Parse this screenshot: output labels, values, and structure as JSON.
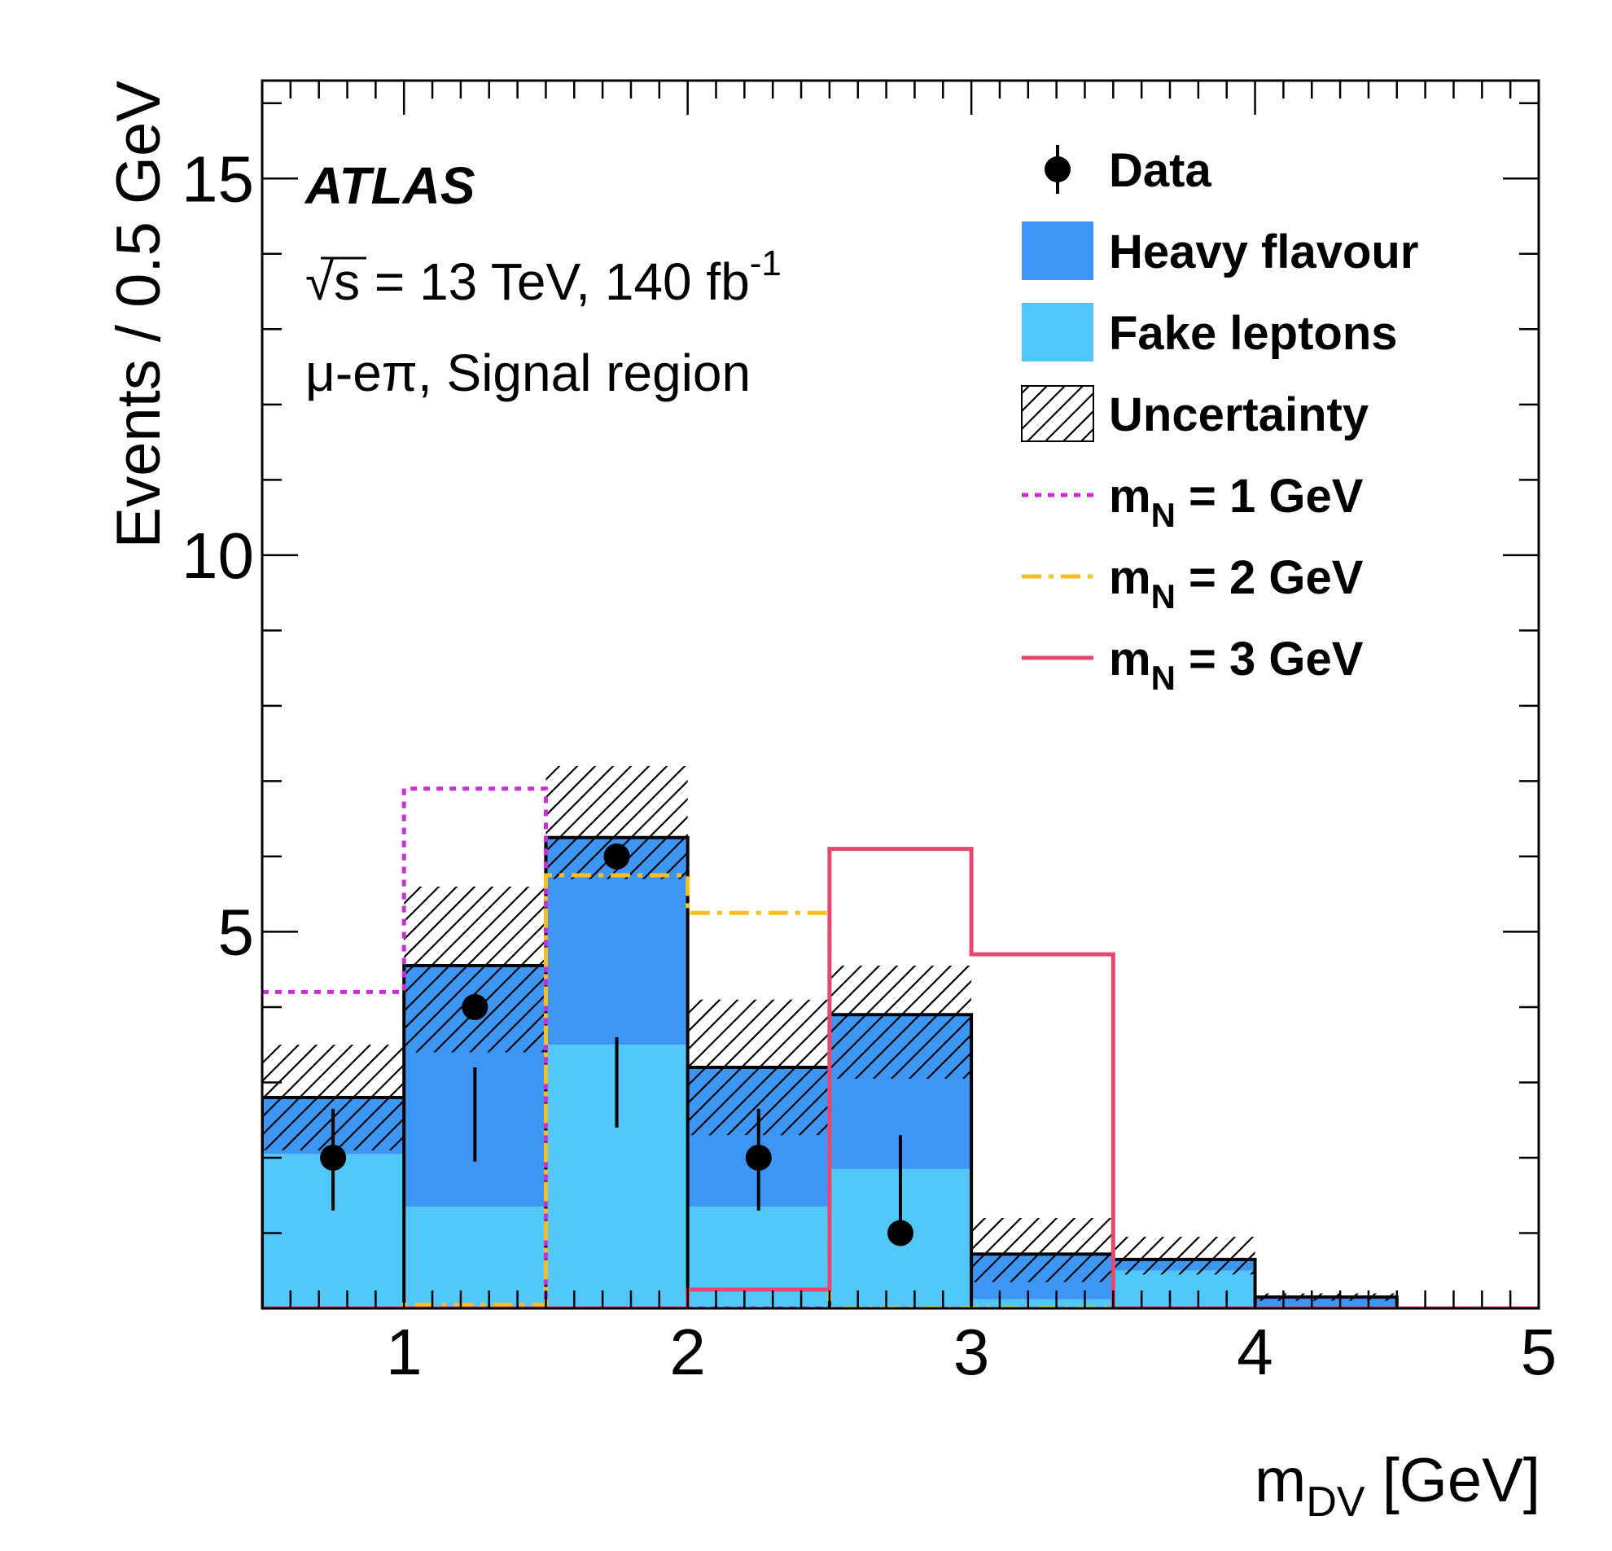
{
  "chart_data": {
    "type": "bar",
    "bins": [
      [
        0.5,
        1.0
      ],
      [
        1.0,
        1.5
      ],
      [
        1.5,
        2.0
      ],
      [
        2.0,
        2.5
      ],
      [
        2.5,
        3.0
      ],
      [
        3.0,
        3.5
      ],
      [
        3.5,
        4.0
      ],
      [
        4.0,
        4.5
      ],
      [
        4.5,
        5.0
      ]
    ],
    "xlabel": "m",
    "xlabel_sub": "DV",
    "xlabel_unit": " [GeV]",
    "ylabel": "Events / 0.5 GeV",
    "xlim": [
      0.5,
      5
    ],
    "ylim": [
      0,
      16.3
    ],
    "x_ticks": [
      1,
      2,
      3,
      4,
      5
    ],
    "y_ticks": [
      5,
      10,
      15
    ],
    "atlas_label": "ATLAS",
    "energy_label": "√s = 13 TeV, 140 fb",
    "energy_sup": "-1",
    "region_label": "μ-eπ, Signal region",
    "stack": [
      {
        "name": "Fake leptons",
        "color": "#52c8fa",
        "values": [
          2.05,
          1.35,
          3.5,
          1.35,
          1.85,
          0.12,
          0.5,
          0.0,
          0.0
        ]
      },
      {
        "name": "Heavy flavour",
        "color": "#3d96f4",
        "values": [
          0.75,
          3.2,
          2.75,
          1.85,
          2.05,
          0.6,
          0.15,
          0.15,
          0.0
        ]
      }
    ],
    "uncertainty": {
      "name": "Uncertainty",
      "down": [
        2.1,
        3.4,
        5.7,
        2.3,
        3.05,
        0.35,
        0.45,
        0.1,
        0.0
      ],
      "up": [
        3.5,
        5.6,
        7.2,
        4.1,
        4.55,
        1.2,
        0.95,
        0.2,
        0.0
      ]
    },
    "data": {
      "name": "Data",
      "x": [
        0.75,
        1.25,
        1.75,
        2.25,
        2.75
      ],
      "y": [
        2.0,
        4.0,
        6.0,
        2.0,
        1.0
      ],
      "err_low": [
        1.3,
        1.95,
        2.4,
        1.3,
        0.85
      ],
      "err_high": [
        2.65,
        3.2,
        3.6,
        2.65,
        2.3
      ]
    },
    "signals": [
      {
        "name": "m",
        "sub": "N",
        "label_rest": " = 1 GeV",
        "color": "#c92fd3",
        "dash": "dotted",
        "values": [
          4.2,
          6.9,
          0.0,
          0.0,
          0.0,
          0.0,
          0.0,
          0.0,
          0.0
        ]
      },
      {
        "name": "m",
        "sub": "N",
        "label_rest": " = 2 GeV",
        "color": "#f7bf23",
        "dash": "dashdot",
        "values": [
          0.0,
          0.05,
          5.75,
          5.25,
          0.0,
          0.0,
          0.0,
          0.0,
          0.0
        ]
      },
      {
        "name": "m",
        "sub": "N",
        "label_rest": " = 3 GeV",
        "color": "#e8466e",
        "dash": "solid",
        "values": [
          0.0,
          0.0,
          0.0,
          0.25,
          6.1,
          4.7,
          0.0,
          0.0,
          0.0
        ]
      }
    ],
    "legend": {
      "placement": "top-right",
      "entries": [
        "Data",
        "Heavy flavour",
        "Fake leptons",
        "Uncertainty"
      ]
    }
  }
}
